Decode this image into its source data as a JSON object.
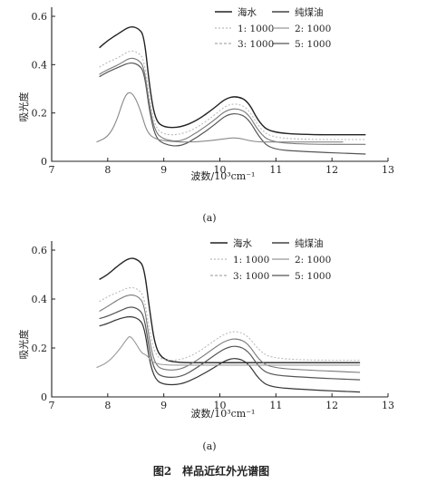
{
  "chart_data": [
    {
      "type": "line",
      "panel_label": "(a)",
      "xlabel": "波数/10³cm⁻¹",
      "ylabel": "吸光度",
      "xlim": [
        7,
        13
      ],
      "ylim": [
        0,
        0.6
      ],
      "x_ticks": [
        "7",
        "8",
        "9",
        "10",
        "11",
        "12",
        "13"
      ],
      "y_ticks": [
        "0",
        "0.2",
        "0.4",
        "0.6"
      ],
      "legend_placement": "top-right",
      "legend": [
        {
          "label": "海水",
          "color": "#222222",
          "dash": ""
        },
        {
          "label": "纯煤油",
          "color": "#444444",
          "dash": ""
        },
        {
          "label": "1: 1000",
          "color": "#bbbbbb",
          "dash": "2,2"
        },
        {
          "label": "2: 1000",
          "color": "#999999",
          "dash": ""
        },
        {
          "label": "3: 1000",
          "color": "#aaaaaa",
          "dash": "3,2"
        },
        {
          "label": "5: 1000",
          "color": "#555555",
          "dash": ""
        }
      ],
      "series": [
        {
          "color": "#222222",
          "width": 1.4,
          "dash": "",
          "points": [
            [
              7.85,
              0.47
            ],
            [
              8.0,
              0.5
            ],
            [
              8.2,
              0.53
            ],
            [
              8.4,
              0.56
            ],
            [
              8.55,
              0.55
            ],
            [
              8.65,
              0.52
            ],
            [
              8.75,
              0.3
            ],
            [
              8.85,
              0.17
            ],
            [
              9.0,
              0.14
            ],
            [
              9.3,
              0.14
            ],
            [
              9.6,
              0.17
            ],
            [
              9.9,
              0.22
            ],
            [
              10.1,
              0.26
            ],
            [
              10.3,
              0.27
            ],
            [
              10.5,
              0.25
            ],
            [
              10.7,
              0.16
            ],
            [
              10.9,
              0.12
            ],
            [
              11.5,
              0.11
            ],
            [
              12.6,
              0.11
            ]
          ]
        },
        {
          "color": "#555555",
          "width": 1.2,
          "dash": "",
          "points": [
            [
              7.85,
              0.35
            ],
            [
              8.0,
              0.37
            ],
            [
              8.2,
              0.39
            ],
            [
              8.4,
              0.41
            ],
            [
              8.55,
              0.4
            ],
            [
              8.65,
              0.37
            ],
            [
              8.75,
              0.2
            ],
            [
              8.85,
              0.1
            ],
            [
              9.0,
              0.07
            ],
            [
              9.3,
              0.06
            ],
            [
              9.6,
              0.1
            ],
            [
              9.9,
              0.15
            ],
            [
              10.1,
              0.19
            ],
            [
              10.3,
              0.2
            ],
            [
              10.5,
              0.18
            ],
            [
              10.7,
              0.1
            ],
            [
              10.9,
              0.05
            ],
            [
              11.5,
              0.04
            ],
            [
              12.6,
              0.03
            ]
          ]
        },
        {
          "color": "#777777",
          "width": 1.1,
          "dash": "",
          "points": [
            [
              7.85,
              0.36
            ],
            [
              8.0,
              0.38
            ],
            [
              8.2,
              0.4
            ],
            [
              8.4,
              0.43
            ],
            [
              8.55,
              0.42
            ],
            [
              8.65,
              0.39
            ],
            [
              8.75,
              0.22
            ],
            [
              8.85,
              0.12
            ],
            [
              9.0,
              0.09
            ],
            [
              9.3,
              0.08
            ],
            [
              9.6,
              0.12
            ],
            [
              9.9,
              0.17
            ],
            [
              10.1,
              0.21
            ],
            [
              10.3,
              0.22
            ],
            [
              10.5,
              0.2
            ],
            [
              10.7,
              0.12
            ],
            [
              10.9,
              0.08
            ],
            [
              11.5,
              0.07
            ],
            [
              12.6,
              0.07
            ]
          ]
        },
        {
          "color": "#bbbbbb",
          "width": 1.1,
          "dash": "2,2",
          "points": [
            [
              7.85,
              0.39
            ],
            [
              8.0,
              0.41
            ],
            [
              8.2,
              0.43
            ],
            [
              8.4,
              0.46
            ],
            [
              8.55,
              0.45
            ],
            [
              8.65,
              0.42
            ],
            [
              8.75,
              0.25
            ],
            [
              8.85,
              0.14
            ],
            [
              9.0,
              0.11
            ],
            [
              9.3,
              0.11
            ],
            [
              9.6,
              0.14
            ],
            [
              9.9,
              0.19
            ],
            [
              10.1,
              0.23
            ],
            [
              10.3,
              0.24
            ],
            [
              10.5,
              0.22
            ],
            [
              10.7,
              0.14
            ],
            [
              10.9,
              0.1
            ],
            [
              11.5,
              0.09
            ],
            [
              12.6,
              0.09
            ]
          ]
        },
        {
          "color": "#888888",
          "width": 1.1,
          "dash": "",
          "points": [
            [
              7.8,
              0.08
            ],
            [
              8.0,
              0.1
            ],
            [
              8.15,
              0.16
            ],
            [
              8.3,
              0.27
            ],
            [
              8.4,
              0.29
            ],
            [
              8.5,
              0.26
            ],
            [
              8.6,
              0.2
            ],
            [
              8.7,
              0.12
            ],
            [
              8.85,
              0.09
            ],
            [
              9.2,
              0.08
            ],
            [
              9.6,
              0.08
            ],
            [
              10.0,
              0.09
            ],
            [
              10.3,
              0.1
            ],
            [
              10.6,
              0.08
            ],
            [
              11.0,
              0.08
            ],
            [
              11.5,
              0.08
            ],
            [
              12.2,
              0.08
            ]
          ]
        }
      ]
    },
    {
      "type": "line",
      "panel_label": "(a)",
      "xlabel": "波数/10³cm⁻¹",
      "ylabel": "吸光度",
      "xlim": [
        7,
        13
      ],
      "ylim": [
        0,
        0.6
      ],
      "x_ticks": [
        "7",
        "8",
        "9",
        "10",
        "11",
        "12",
        "13"
      ],
      "y_ticks": [
        "0",
        "0.2",
        "0.4",
        "0.6"
      ],
      "legend_placement": "top-right",
      "legend": [
        {
          "label": "海水",
          "color": "#222222",
          "dash": ""
        },
        {
          "label": "纯煤油",
          "color": "#444444",
          "dash": ""
        },
        {
          "label": "1: 1000",
          "color": "#bbbbbb",
          "dash": "2,2"
        },
        {
          "label": "2: 1000",
          "color": "#999999",
          "dash": ""
        },
        {
          "label": "3: 1000",
          "color": "#aaaaaa",
          "dash": "3,2"
        },
        {
          "label": "5: 1000",
          "color": "#555555",
          "dash": ""
        }
      ],
      "series": [
        {
          "color": "#222222",
          "width": 1.4,
          "dash": "",
          "points": [
            [
              7.85,
              0.48
            ],
            [
              8.0,
              0.5
            ],
            [
              8.2,
              0.54
            ],
            [
              8.4,
              0.57
            ],
            [
              8.55,
              0.56
            ],
            [
              8.65,
              0.53
            ],
            [
              8.75,
              0.35
            ],
            [
              8.85,
              0.2
            ],
            [
              9.0,
              0.15
            ],
            [
              9.3,
              0.14
            ],
            [
              9.6,
              0.14
            ],
            [
              10.0,
              0.14
            ],
            [
              10.5,
              0.14
            ],
            [
              11.0,
              0.14
            ],
            [
              11.5,
              0.14
            ],
            [
              12.5,
              0.14
            ]
          ]
        },
        {
          "color": "#bbbbbb",
          "width": 1.1,
          "dash": "2,2",
          "points": [
            [
              7.85,
              0.39
            ],
            [
              8.0,
              0.41
            ],
            [
              8.2,
              0.43
            ],
            [
              8.4,
              0.45
            ],
            [
              8.55,
              0.44
            ],
            [
              8.65,
              0.41
            ],
            [
              8.75,
              0.26
            ],
            [
              8.85,
              0.17
            ],
            [
              9.0,
              0.15
            ],
            [
              9.3,
              0.15
            ],
            [
              9.6,
              0.18
            ],
            [
              9.9,
              0.23
            ],
            [
              10.1,
              0.26
            ],
            [
              10.3,
              0.27
            ],
            [
              10.5,
              0.25
            ],
            [
              10.7,
              0.19
            ],
            [
              10.9,
              0.16
            ],
            [
              11.5,
              0.15
            ],
            [
              12.5,
              0.15
            ]
          ]
        },
        {
          "color": "#777777",
          "width": 1.1,
          "dash": "",
          "points": [
            [
              7.85,
              0.35
            ],
            [
              8.0,
              0.37
            ],
            [
              8.2,
              0.4
            ],
            [
              8.4,
              0.42
            ],
            [
              8.55,
              0.41
            ],
            [
              8.65,
              0.38
            ],
            [
              8.75,
              0.22
            ],
            [
              8.85,
              0.13
            ],
            [
              9.0,
              0.11
            ],
            [
              9.3,
              0.11
            ],
            [
              9.6,
              0.15
            ],
            [
              9.9,
              0.2
            ],
            [
              10.1,
              0.23
            ],
            [
              10.3,
              0.24
            ],
            [
              10.5,
              0.22
            ],
            [
              10.7,
              0.15
            ],
            [
              10.9,
              0.12
            ],
            [
              11.5,
              0.11
            ],
            [
              12.5,
              0.1
            ]
          ]
        },
        {
          "color": "#555555",
          "width": 1.2,
          "dash": "",
          "points": [
            [
              7.85,
              0.32
            ],
            [
              8.0,
              0.33
            ],
            [
              8.2,
              0.35
            ],
            [
              8.4,
              0.37
            ],
            [
              8.55,
              0.36
            ],
            [
              8.65,
              0.33
            ],
            [
              8.75,
              0.18
            ],
            [
              8.85,
              0.1
            ],
            [
              9.0,
              0.08
            ],
            [
              9.3,
              0.08
            ],
            [
              9.6,
              0.12
            ],
            [
              9.9,
              0.17
            ],
            [
              10.1,
              0.2
            ],
            [
              10.3,
              0.21
            ],
            [
              10.5,
              0.19
            ],
            [
              10.7,
              0.12
            ],
            [
              10.9,
              0.09
            ],
            [
              11.5,
              0.08
            ],
            [
              12.5,
              0.07
            ]
          ]
        },
        {
          "color": "#333333",
          "width": 1.2,
          "dash": "",
          "points": [
            [
              7.85,
              0.29
            ],
            [
              8.0,
              0.3
            ],
            [
              8.2,
              0.32
            ],
            [
              8.4,
              0.33
            ],
            [
              8.55,
              0.32
            ],
            [
              8.65,
              0.29
            ],
            [
              8.75,
              0.14
            ],
            [
              8.85,
              0.07
            ],
            [
              9.0,
              0.05
            ],
            [
              9.3,
              0.05
            ],
            [
              9.6,
              0.08
            ],
            [
              9.9,
              0.12
            ],
            [
              10.1,
              0.15
            ],
            [
              10.3,
              0.16
            ],
            [
              10.5,
              0.14
            ],
            [
              10.7,
              0.07
            ],
            [
              10.9,
              0.04
            ],
            [
              11.5,
              0.03
            ],
            [
              12.5,
              0.02
            ]
          ]
        },
        {
          "color": "#999999",
          "width": 1.1,
          "dash": "",
          "points": [
            [
              7.8,
              0.12
            ],
            [
              8.0,
              0.14
            ],
            [
              8.2,
              0.19
            ],
            [
              8.35,
              0.24
            ],
            [
              8.4,
              0.25
            ],
            [
              8.5,
              0.22
            ],
            [
              8.6,
              0.18
            ],
            [
              8.7,
              0.17
            ],
            [
              8.8,
              0.14
            ],
            [
              9.0,
              0.13
            ],
            [
              9.5,
              0.13
            ],
            [
              10.0,
              0.13
            ],
            [
              10.5,
              0.13
            ],
            [
              11.0,
              0.13
            ],
            [
              11.5,
              0.13
            ],
            [
              12.5,
              0.13
            ]
          ]
        }
      ]
    }
  ],
  "figure_caption": "图2　样品近红外光谱图"
}
